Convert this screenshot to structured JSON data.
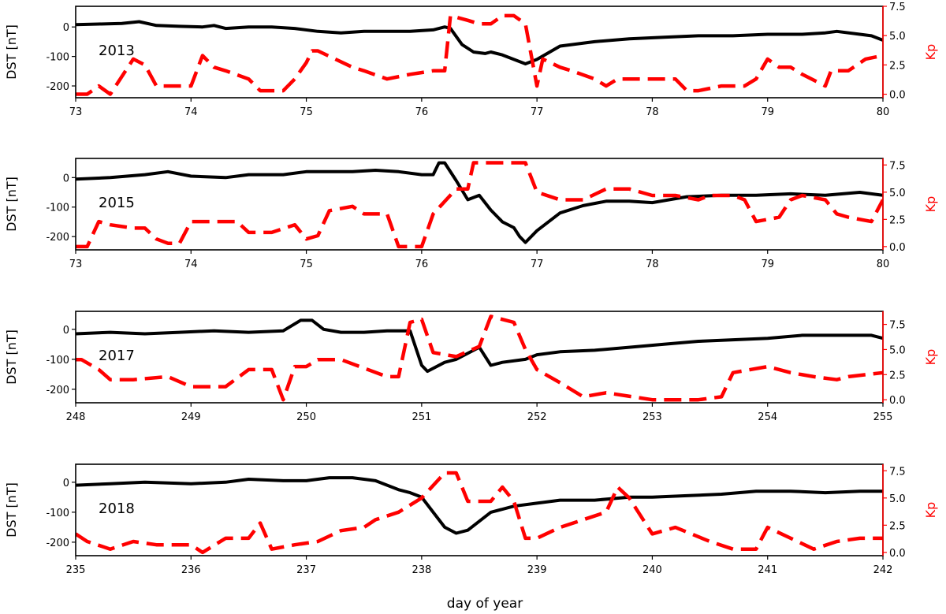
{
  "figure": {
    "xlabel": "day of year",
    "colors": {
      "dst": "#000000",
      "kp": "#ff0000",
      "axis": "#000000",
      "kp_axis": "#ff0000"
    }
  },
  "chart_data": [
    {
      "type": "line",
      "panel_label": "2013",
      "ylabel": "DST [nT]",
      "y2label": "Kp",
      "xlim": [
        73,
        80
      ],
      "ylim": [
        -240,
        70
      ],
      "y2lim": [
        -0.3,
        7.5
      ],
      "xticks": [
        73,
        74,
        75,
        76,
        77,
        78,
        79,
        80
      ],
      "yticks": [
        0,
        -100,
        -200
      ],
      "y2ticks": [
        "0.0",
        "2.5",
        "5.0",
        "7.5"
      ],
      "series": [
        {
          "axis": "left",
          "style": "solid",
          "color": "#000000",
          "x": [
            73.0,
            73.2,
            73.4,
            73.55,
            73.7,
            73.9,
            74.1,
            74.2,
            74.3,
            74.5,
            74.7,
            74.9,
            75.1,
            75.3,
            75.5,
            75.7,
            75.9,
            76.1,
            76.2,
            76.25,
            76.35,
            76.45,
            76.55,
            76.6,
            76.7,
            76.8,
            76.9,
            77.0,
            77.2,
            77.5,
            77.8,
            78.1,
            78.4,
            78.7,
            79.0,
            79.3,
            79.5,
            79.6,
            79.8,
            79.9,
            80.0
          ],
          "y": [
            8,
            10,
            12,
            18,
            5,
            2,
            0,
            5,
            -5,
            0,
            0,
            -5,
            -15,
            -20,
            -15,
            -15,
            -15,
            -10,
            0,
            -5,
            -60,
            -85,
            -90,
            -85,
            -95,
            -110,
            -125,
            -110,
            -65,
            -50,
            -40,
            -35,
            -30,
            -30,
            -25,
            -25,
            -20,
            -15,
            -25,
            -30,
            -45
          ]
        },
        {
          "axis": "right",
          "style": "dashed",
          "color": "#ff0000",
          "x": [
            73.0,
            73.1,
            73.2,
            73.3,
            73.4,
            73.5,
            73.6,
            73.7,
            73.8,
            74.0,
            74.1,
            74.2,
            74.3,
            74.5,
            74.6,
            74.7,
            74.8,
            74.9,
            75.0,
            75.05,
            75.1,
            75.25,
            75.4,
            75.5,
            75.7,
            75.9,
            76.1,
            76.2,
            76.25,
            76.4,
            76.5,
            76.6,
            76.7,
            76.8,
            76.9,
            77.0,
            77.05,
            77.2,
            77.3,
            77.5,
            77.6,
            77.7,
            77.8,
            78.0,
            78.2,
            78.3,
            78.4,
            78.6,
            78.8,
            78.9,
            79.0,
            79.1,
            79.2,
            79.3,
            79.5,
            79.55,
            79.7,
            79.85,
            80.0
          ],
          "y": [
            0,
            0,
            0.7,
            0,
            1.5,
            3.0,
            2.5,
            0.7,
            0.7,
            0.7,
            3.3,
            2.3,
            2.0,
            1.3,
            0.3,
            0.3,
            0.3,
            1.3,
            2.7,
            3.7,
            3.7,
            3.0,
            2.3,
            2.0,
            1.3,
            1.7,
            2.0,
            2.0,
            6.7,
            6.3,
            6.0,
            6.0,
            6.7,
            6.7,
            6.0,
            0.7,
            3.0,
            2.3,
            2.0,
            1.3,
            0.7,
            1.3,
            1.3,
            1.3,
            1.3,
            0.3,
            0.3,
            0.7,
            0.7,
            1.3,
            3.0,
            2.3,
            2.3,
            1.7,
            0.7,
            2.0,
            2.0,
            3.0,
            3.3
          ]
        }
      ]
    },
    {
      "type": "line",
      "panel_label": "2015",
      "ylabel": "DST [nT]",
      "y2label": "Kp",
      "xlim": [
        73,
        80
      ],
      "ylim": [
        -245,
        65
      ],
      "y2lim": [
        -0.3,
        8.1
      ],
      "xticks": [
        73,
        74,
        75,
        76,
        77,
        78,
        79,
        80
      ],
      "yticks": [
        0,
        -100,
        -200
      ],
      "y2ticks": [
        "0.0",
        "2.5",
        "5.0",
        "7.5"
      ],
      "series": [
        {
          "axis": "left",
          "style": "solid",
          "color": "#000000",
          "x": [
            73.0,
            73.3,
            73.6,
            73.8,
            74.0,
            74.3,
            74.5,
            74.8,
            75.0,
            75.2,
            75.4,
            75.6,
            75.8,
            76.0,
            76.1,
            76.15,
            76.2,
            76.3,
            76.4,
            76.5,
            76.6,
            76.7,
            76.8,
            76.85,
            76.9,
            77.0,
            77.2,
            77.4,
            77.6,
            77.8,
            78.0,
            78.3,
            78.6,
            78.9,
            79.2,
            79.5,
            79.8,
            80.0
          ],
          "y": [
            -5,
            0,
            10,
            20,
            5,
            0,
            10,
            10,
            20,
            20,
            20,
            25,
            20,
            10,
            10,
            50,
            50,
            -10,
            -75,
            -60,
            -110,
            -150,
            -170,
            -200,
            -220,
            -180,
            -120,
            -95,
            -80,
            -80,
            -85,
            -65,
            -60,
            -60,
            -55,
            -60,
            -50,
            -60
          ]
        },
        {
          "axis": "right",
          "style": "dashed",
          "color": "#ff0000",
          "x": [
            73.0,
            73.1,
            73.2,
            73.3,
            73.5,
            73.6,
            73.7,
            73.8,
            73.9,
            74.0,
            74.2,
            74.4,
            74.5,
            74.7,
            74.9,
            75.0,
            75.1,
            75.2,
            75.4,
            75.5,
            75.7,
            75.8,
            75.9,
            76.0,
            76.1,
            76.3,
            76.4,
            76.45,
            76.5,
            76.6,
            76.7,
            76.9,
            77.0,
            77.2,
            77.4,
            77.6,
            77.8,
            78.0,
            78.2,
            78.4,
            78.5,
            78.7,
            78.8,
            78.9,
            79.1,
            79.2,
            79.3,
            79.5,
            79.6,
            79.7,
            79.9,
            80.0
          ],
          "y": [
            0,
            0,
            2.3,
            2.0,
            1.7,
            1.7,
            0.7,
            0.3,
            0.3,
            2.3,
            2.3,
            2.3,
            1.3,
            1.3,
            2.0,
            0.7,
            1.0,
            3.3,
            3.7,
            3.0,
            3.0,
            0,
            0,
            0,
            3.0,
            5.3,
            5.3,
            7.7,
            7.7,
            7.7,
            7.7,
            7.7,
            5.0,
            4.3,
            4.3,
            5.3,
            5.3,
            4.7,
            4.7,
            4.3,
            4.7,
            4.7,
            4.3,
            2.3,
            2.7,
            4.3,
            4.7,
            4.3,
            3.0,
            2.7,
            2.3,
            4.3
          ]
        }
      ]
    },
    {
      "type": "line",
      "panel_label": "2017",
      "ylabel": "DST [nT]",
      "y2label": "Kp",
      "xlim": [
        248,
        255
      ],
      "ylim": [
        -245,
        60
      ],
      "y2lim": [
        -0.3,
        8.8
      ],
      "xticks": [
        248,
        249,
        250,
        251,
        252,
        253,
        254,
        255
      ],
      "yticks": [
        0,
        -100,
        -200
      ],
      "y2ticks": [
        "0.0",
        "2.5",
        "5.0",
        "7.5"
      ],
      "series": [
        {
          "axis": "left",
          "style": "solid",
          "color": "#000000",
          "x": [
            248.0,
            248.3,
            248.6,
            248.9,
            249.2,
            249.5,
            249.8,
            249.95,
            250.05,
            250.15,
            250.3,
            250.5,
            250.7,
            250.9,
            251.0,
            251.05,
            251.2,
            251.3,
            251.5,
            251.6,
            251.7,
            251.9,
            252.0,
            252.2,
            252.5,
            252.8,
            253.1,
            253.4,
            253.7,
            254.0,
            254.3,
            254.6,
            254.9,
            255.0
          ],
          "y": [
            -15,
            -10,
            -15,
            -10,
            -5,
            -10,
            -5,
            30,
            30,
            0,
            -10,
            -10,
            -5,
            -5,
            -120,
            -140,
            -110,
            -100,
            -60,
            -120,
            -110,
            -100,
            -85,
            -75,
            -70,
            -60,
            -50,
            -40,
            -35,
            -30,
            -20,
            -20,
            -20,
            -30
          ]
        },
        {
          "axis": "right",
          "style": "dashed",
          "color": "#ff0000",
          "x": [
            248.0,
            248.05,
            248.2,
            248.3,
            248.5,
            248.8,
            249.0,
            249.3,
            249.5,
            249.7,
            249.8,
            249.9,
            250.0,
            250.1,
            250.3,
            250.7,
            250.8,
            250.9,
            251.0,
            251.1,
            251.3,
            251.5,
            251.6,
            251.8,
            251.9,
            252.0,
            252.2,
            252.4,
            252.6,
            253.0,
            253.4,
            253.6,
            253.7,
            254.0,
            254.2,
            254.4,
            254.6,
            254.7,
            255.0
          ],
          "y": [
            4.0,
            4.0,
            3.0,
            2.0,
            2.0,
            2.3,
            1.3,
            1.3,
            3.0,
            3.0,
            0,
            3.3,
            3.3,
            4.0,
            4.0,
            2.3,
            2.3,
            7.7,
            8.0,
            4.7,
            4.3,
            5.3,
            8.3,
            7.7,
            5.0,
            3.0,
            1.7,
            0.3,
            0.7,
            0,
            0,
            0.3,
            2.7,
            3.3,
            2.7,
            2.3,
            2.0,
            2.3,
            2.7
          ]
        }
      ]
    },
    {
      "type": "line",
      "panel_label": "2018",
      "ylabel": "DST [nT]",
      "y2label": "Kp",
      "xlim": [
        235,
        242
      ],
      "ylim": [
        -245,
        60
      ],
      "y2lim": [
        -0.3,
        8.1
      ],
      "xticks": [
        235,
        236,
        237,
        238,
        239,
        240,
        241,
        242
      ],
      "yticks": [
        0,
        -100,
        -200
      ],
      "y2ticks": [
        "0.0",
        "2.5",
        "5.0",
        "7.5"
      ],
      "series": [
        {
          "axis": "left",
          "style": "solid",
          "color": "#000000",
          "x": [
            235.0,
            235.3,
            235.6,
            236.0,
            236.3,
            236.5,
            236.8,
            237.0,
            237.2,
            237.4,
            237.6,
            237.8,
            237.9,
            238.0,
            238.1,
            238.2,
            238.3,
            238.4,
            238.6,
            238.8,
            239.0,
            239.2,
            239.5,
            239.8,
            240.0,
            240.3,
            240.6,
            240.9,
            241.2,
            241.5,
            241.8,
            242.0
          ],
          "y": [
            -10,
            -5,
            0,
            -5,
            0,
            10,
            5,
            5,
            15,
            15,
            5,
            -25,
            -35,
            -50,
            -100,
            -150,
            -170,
            -160,
            -100,
            -80,
            -70,
            -60,
            -60,
            -50,
            -50,
            -45,
            -40,
            -30,
            -30,
            -35,
            -30,
            -30
          ]
        },
        {
          "axis": "right",
          "style": "dashed",
          "color": "#ff0000",
          "x": [
            235.0,
            235.1,
            235.3,
            235.5,
            235.7,
            236.0,
            236.1,
            236.3,
            236.5,
            236.6,
            236.7,
            236.9,
            237.1,
            237.3,
            237.5,
            237.6,
            237.8,
            238.0,
            238.2,
            238.3,
            238.4,
            238.6,
            238.7,
            238.8,
            238.9,
            239.0,
            239.2,
            239.4,
            239.6,
            239.7,
            239.8,
            240.0,
            240.2,
            240.5,
            240.7,
            240.9,
            241.0,
            241.2,
            241.4,
            241.6,
            241.8,
            242.0
          ],
          "y": [
            1.7,
            1.0,
            0.3,
            1.0,
            0.7,
            0.7,
            0,
            1.3,
            1.3,
            2.7,
            0.3,
            0.7,
            1.0,
            2.0,
            2.3,
            3.0,
            3.7,
            5.0,
            7.3,
            7.3,
            4.7,
            4.7,
            6.0,
            4.7,
            1.3,
            1.3,
            2.3,
            3.0,
            3.7,
            6.0,
            5.0,
            1.7,
            2.3,
            1.0,
            0.3,
            0.3,
            2.3,
            1.3,
            0.3,
            1.0,
            1.3,
            1.3
          ]
        }
      ]
    }
  ]
}
